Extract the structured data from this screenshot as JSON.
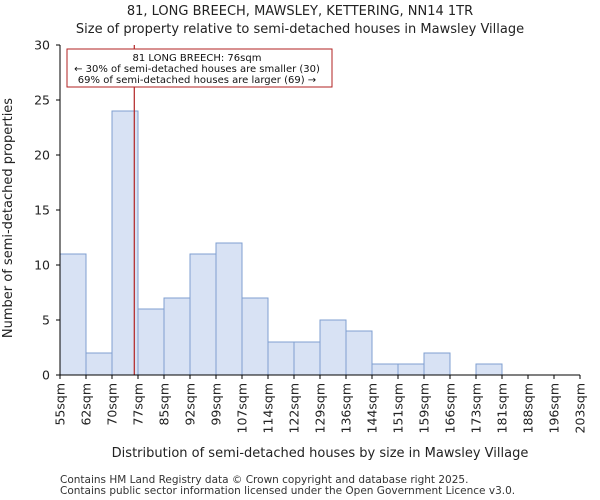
{
  "chart_data": {
    "type": "bar",
    "title_line1": "81, LONG BREECH, MAWSLEY, KETTERING, NN14 1TR",
    "title_line2": "Size of property relative to semi-detached houses in Mawsley Village",
    "xlabel": "Distribution of semi-detached houses by size in Mawsley Village",
    "ylabel": "Number of semi-detached properties",
    "ylim": [
      0,
      30
    ],
    "yticks": [
      0,
      5,
      10,
      15,
      20,
      25,
      30
    ],
    "bin_edges": [
      55,
      62,
      70,
      77,
      85,
      92,
      99,
      107,
      114,
      122,
      129,
      136,
      144,
      151,
      159,
      166,
      173,
      181,
      188,
      196,
      203
    ],
    "x_tick_labels": [
      "55sqm",
      "62sqm",
      "70sqm",
      "77sqm",
      "85sqm",
      "92sqm",
      "99sqm",
      "107sqm",
      "114sqm",
      "122sqm",
      "129sqm",
      "136sqm",
      "144sqm",
      "151sqm",
      "159sqm",
      "166sqm",
      "173sqm",
      "181sqm",
      "188sqm",
      "196sqm",
      "203sqm"
    ],
    "values": [
      11,
      2,
      24,
      6,
      7,
      11,
      12,
      7,
      3,
      3,
      5,
      4,
      1,
      1,
      2,
      0,
      1,
      0,
      0,
      0
    ],
    "marker": {
      "value_sqm": 76,
      "color": "#b22222"
    },
    "annotation": {
      "line1": "81 LONG BREECH: 76sqm",
      "line2": "← 30% of semi-detached houses are smaller (30)",
      "line3": "69% of semi-detached houses are larger (69) →"
    },
    "colors": {
      "bar_fill": "#d8e2f4",
      "bar_edge": "#7f9fd0",
      "marker": "#b22222"
    }
  },
  "footer": {
    "line1": "Contains HM Land Registry data © Crown copyright and database right 2025.",
    "line2": "Contains public sector information licensed under the Open Government Licence v3.0."
  }
}
